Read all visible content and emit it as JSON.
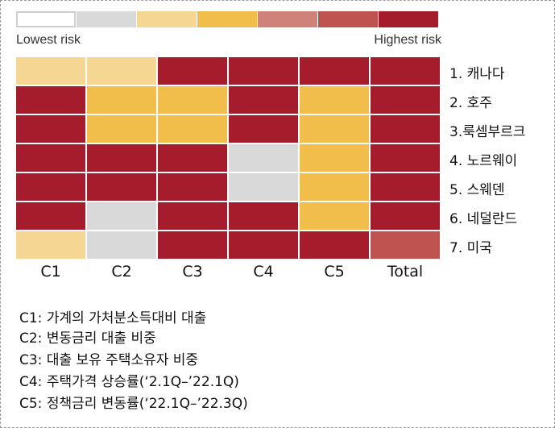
{
  "legend": {
    "low_label": "Lowest risk",
    "high_label": "Highest risk",
    "scale_colors": [
      "#ffffff",
      "#d9d9d9",
      "#f6d693",
      "#f1be4b",
      "#cf8279",
      "#be524f",
      "#a51d2d"
    ]
  },
  "chart_data": {
    "type": "heatmap",
    "title": "",
    "columns": [
      "C1",
      "C2",
      "C3",
      "C4",
      "C5",
      "Total"
    ],
    "rows": [
      "1. 캐나다",
      "2. 호주",
      "3.룩셈부르크",
      "4. 노르웨이",
      "5. 스웨덴",
      "6. 네덜란드",
      "7. 미국"
    ],
    "risk_level_scale": "1 = lowest risk ... 7 = highest risk",
    "values": [
      [
        3,
        3,
        7,
        7,
        7,
        7
      ],
      [
        7,
        4,
        4,
        7,
        4,
        7
      ],
      [
        7,
        4,
        4,
        7,
        4,
        7
      ],
      [
        7,
        7,
        7,
        2,
        4,
        7
      ],
      [
        7,
        7,
        7,
        2,
        4,
        7
      ],
      [
        7,
        2,
        7,
        7,
        4,
        7
      ],
      [
        3,
        2,
        7,
        7,
        7,
        6
      ]
    ]
  },
  "notes": [
    "C1: 가계의 가처분소득대비 대출",
    "C2: 변동금리 대출 비중",
    "C3: 대출 보유 주택소유자 비중",
    "C4:  주택가격 상승률(‘2.1Q–’22.1Q)",
    "C5: 정책금리 변동률(‘22.1Q–’22.3Q)"
  ]
}
